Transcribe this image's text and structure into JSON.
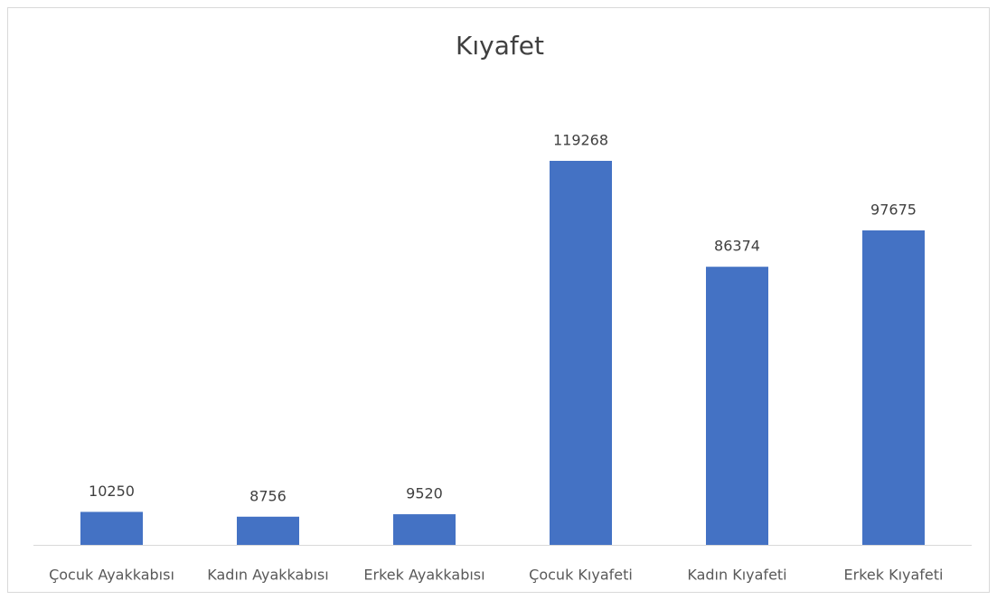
{
  "chart_data": {
    "type": "bar",
    "title": "Kıyafet",
    "categories": [
      "Çocuk Ayakkabısı",
      "Kadın Ayakkabısı",
      "Erkek Ayakkabısı",
      "Çocuk Kıyafeti",
      "Kadın Kıyafeti",
      "Erkek Kıyafeti"
    ],
    "values": [
      10250,
      8756,
      9520,
      119268,
      86374,
      97675
    ],
    "color": "#4472c4"
  }
}
